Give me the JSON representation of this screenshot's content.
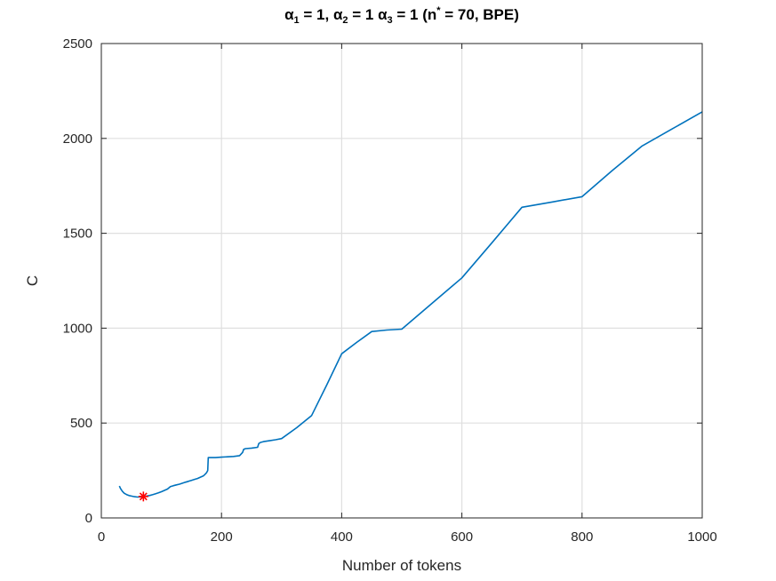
{
  "chart_data": {
    "type": "line",
    "title": {
      "a1": "α",
      "s1": "1",
      "t1": " = 1, ",
      "a2": "α",
      "s2": "2",
      "t2": " = 1 ",
      "a3": "α",
      "s3": "3",
      "t3": " = 1 (n",
      "sup": "*",
      "t4": " = 70, BPE)"
    },
    "xlabel": "Number of tokens",
    "ylabel": "C",
    "xlim": [
      0,
      1000
    ],
    "ylim": [
      0,
      2500
    ],
    "xticks": [
      0,
      200,
      400,
      600,
      800,
      1000
    ],
    "yticks": [
      0,
      500,
      1000,
      1500,
      2000,
      2500
    ],
    "xtick_labels": [
      "0",
      "200",
      "400",
      "600",
      "800",
      "1000"
    ],
    "ytick_labels": [
      "0",
      "500",
      "1000",
      "1500",
      "2000",
      "2500"
    ],
    "grid": true,
    "line_color": "#0072BD",
    "marker_color": "#FF0000",
    "series": [
      {
        "x": [
          30,
          32,
          35,
          38,
          42,
          46,
          50,
          55,
          60,
          65,
          70,
          75,
          80,
          85,
          90,
          95,
          100,
          105,
          110,
          115,
          120,
          125,
          130,
          135,
          140,
          145,
          150,
          155,
          160,
          165,
          170,
          172,
          175,
          177,
          178,
          180,
          185,
          190,
          200,
          210,
          220,
          230,
          235,
          237,
          240,
          250,
          260,
          262,
          265,
          270,
          280,
          290,
          300,
          325,
          350,
          375,
          400,
          425,
          450,
          475,
          500,
          550,
          600,
          650,
          700,
          750,
          800,
          850,
          900,
          950,
          1000
        ],
        "y": [
          168,
          155,
          140,
          130,
          123,
          118,
          115,
          112,
          110,
          111,
          113,
          115,
          118,
          122,
          127,
          132,
          138,
          145,
          152,
          165,
          170,
          174,
          178,
          183,
          188,
          193,
          198,
          203,
          208,
          215,
          222,
          228,
          238,
          250,
          318,
          318,
          318,
          318,
          320,
          322,
          324,
          328,
          345,
          362,
          365,
          368,
          372,
          392,
          398,
          402,
          407,
          412,
          418,
          475,
          540,
          700,
          865,
          925,
          982,
          990,
          995,
          1130,
          1265,
          1450,
          1637,
          1665,
          1693,
          1830,
          1960,
          2050,
          2140
        ]
      }
    ],
    "optimum": {
      "x": 70,
      "y": 113,
      "marker": "*"
    }
  }
}
